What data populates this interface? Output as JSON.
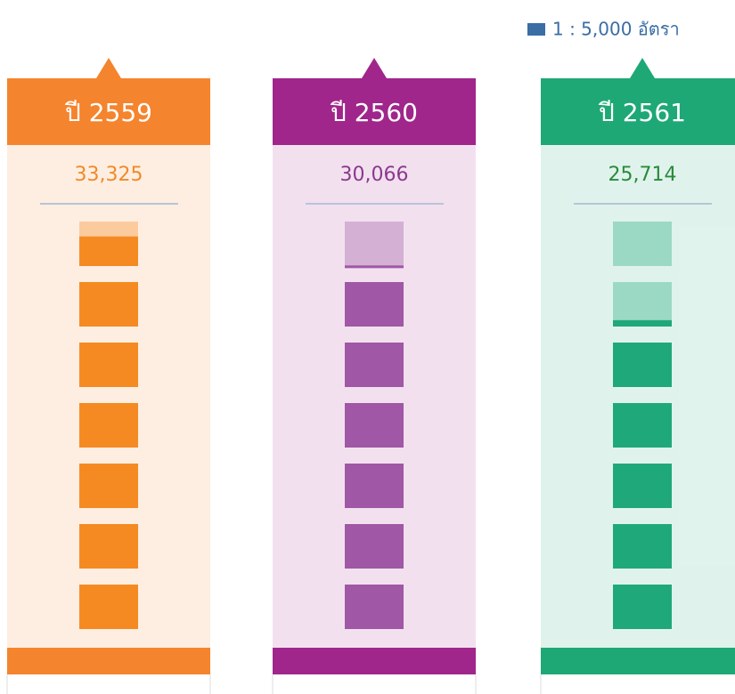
{
  "chart_data": {
    "type": "pictogram",
    "legend": {
      "value": 5000,
      "label": "1 : 5,000 อัตรา"
    },
    "legend_color": "#3a6ea5",
    "categories": [
      "ปี 2559",
      "ปี 2560",
      "ปี 2561"
    ],
    "values": [
      33325,
      30066,
      25714
    ],
    "value_labels": [
      "33,325",
      "30,066",
      "25,714"
    ],
    "colors": [
      "#f5842e",
      "#a0268b",
      "#1ea875"
    ],
    "square_colors": [
      "#f58a22",
      "#a057a5",
      "#1fa97a"
    ],
    "label_colors": [
      "#f08a2a",
      "#8b3a8e",
      "#2a8a3c"
    ]
  }
}
